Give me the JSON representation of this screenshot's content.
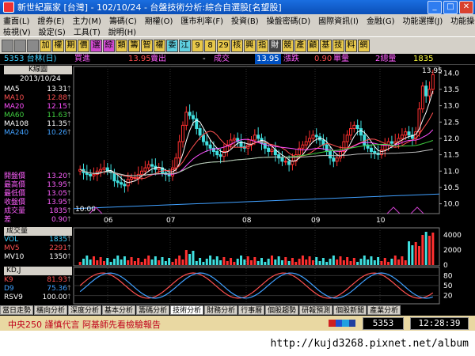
{
  "window": {
    "title": "新世紀贏家 [台灣] - 102/10/24 - 台盤技術分析:綜合自選股[名望股]"
  },
  "menu": {
    "row1": [
      "畫面(L)",
      "證券(E)",
      "主力(M)",
      "籌碼(C)",
      "期權(O)",
      "匯市利率(F)",
      "投資(B)",
      "操盤密碼(D)",
      "國際資訊(I)",
      "金融(G)",
      "功能選擇(J)",
      "功能操作(P)"
    ],
    "row2": [
      "檢視(V)",
      "設定(S)",
      "工具(T)",
      "說明(H)"
    ]
  },
  "toolbar": {
    "buttons": [
      {
        "label": "加",
        "bg": "#e8c84a"
      },
      {
        "label": "權",
        "bg": "#e8c84a"
      },
      {
        "label": "期",
        "bg": "#e8c84a"
      },
      {
        "label": "價",
        "bg": "#e8c84a"
      },
      {
        "label": "選",
        "bg": "#d04ad0"
      },
      {
        "label": "綜",
        "bg": "#d04ad0"
      },
      {
        "label": "類",
        "bg": "#e8c84a"
      },
      {
        "label": "籌",
        "bg": "#e8c84a"
      },
      {
        "label": "智",
        "bg": "#e8c84a"
      },
      {
        "label": "權",
        "bg": "#e8c84a"
      },
      {
        "label": "委",
        "bg": "#5fd0e0"
      },
      {
        "label": "江",
        "bg": "#5fd0e0"
      },
      {
        "label": "9",
        "bg": "#e8c84a"
      },
      {
        "label": "8",
        "bg": "#e8c84a"
      },
      {
        "label": "29",
        "bg": "#e8c84a"
      },
      {
        "label": "核",
        "bg": "#e8c84a"
      },
      {
        "label": "興",
        "bg": "#e8c84a"
      },
      {
        "label": "指",
        "bg": "#e8c84a"
      },
      {
        "label": "財",
        "bg": "#444444"
      },
      {
        "label": "競",
        "bg": "#e8c84a"
      },
      {
        "label": "產",
        "bg": "#e8c84a"
      },
      {
        "label": "顧",
        "bg": "#e8c84a"
      },
      {
        "label": "基",
        "bg": "#e8c84a"
      },
      {
        "label": "技",
        "bg": "#e8c84a"
      },
      {
        "label": "料",
        "bg": "#e8c84a"
      },
      {
        "label": "網",
        "bg": "#e8c84a"
      }
    ]
  },
  "quote": {
    "symbol": "5353 台林(日)",
    "bid_label": "買進",
    "bid": "13.95",
    "ask_label": "賣出",
    "ask": "-",
    "last_label": "成交",
    "last": "13.95",
    "change_label": "漲跌",
    "change": "0.90",
    "vol_label": "單量",
    "vol": "2總量",
    "total": "1835"
  },
  "left_panel": {
    "kline_button": "K線圖",
    "date": "2013/10/24",
    "ma": [
      {
        "name": "MA5",
        "value": "13.31",
        "color": "#ffffff"
      },
      {
        "name": "MA10",
        "value": "12.88",
        "color": "#ff5050"
      },
      {
        "name": "MA20",
        "value": "12.15",
        "color": "#ff50ff"
      },
      {
        "name": "MA60",
        "value": "11.63",
        "color": "#40d040"
      },
      {
        "name": "MA108",
        "value": "11.35",
        "color": "#ffffff"
      },
      {
        "name": "MA240",
        "value": "10.26",
        "color": "#40a0ff"
      }
    ],
    "ohlc": [
      {
        "name": "開盤價",
        "value": "13.20"
      },
      {
        "name": "最高價",
        "value": "13.95"
      },
      {
        "name": "最低價",
        "value": "13.05"
      },
      {
        "name": "收盤價",
        "value": "13.95"
      },
      {
        "name": "成交量",
        "value": "1835"
      },
      {
        "name": "差",
        "value": "0.90"
      }
    ],
    "volume_header": "成交量",
    "volume": [
      {
        "name": "VOL",
        "value": "1835",
        "color": "#40d0ff"
      },
      {
        "name": "MV5",
        "value": "2291",
        "color": "#ff5050"
      },
      {
        "name": "MV10",
        "value": "1350",
        "color": "#ffffff"
      }
    ],
    "kd_header": "KD,J",
    "kd": [
      {
        "name": "K9",
        "value": "81.93",
        "color": "#ff5050"
      },
      {
        "name": "D9",
        "value": "75.36",
        "color": "#40a0ff"
      },
      {
        "name": "RSV9",
        "value": "100.00",
        "color": "#ffffff"
      }
    ]
  },
  "chart_data": {
    "type": "candlestick",
    "x_tick_labels": [
      "06",
      "07",
      "08",
      "09",
      "10"
    ],
    "y_tick_labels": [
      "14.0",
      "13.5",
      "13.0",
      "12.5",
      "12.0",
      "11.5",
      "11.0",
      "10.5",
      "10.0"
    ],
    "ylim": [
      9.7,
      14.2
    ],
    "max_label": "13.95",
    "min_label": "10:00",
    "closes": [
      11.05,
      10.95,
      10.9,
      10.85,
      10.9,
      11.0,
      11.05,
      11.1,
      11.0,
      10.95,
      10.7,
      10.65,
      10.6,
      10.55,
      10.75,
      10.8,
      10.8,
      10.9,
      11.0,
      11.1,
      11.2,
      11.15,
      11.05,
      11.1,
      10.95,
      10.9,
      10.85,
      11.1,
      11.4,
      11.9,
      12.4,
      12.8,
      12.7,
      12.6,
      12.3,
      12.1,
      11.9,
      11.8,
      11.7,
      11.6,
      11.5,
      11.45,
      11.6,
      11.8,
      11.95,
      12.0,
      11.9,
      11.75,
      11.7,
      11.8,
      11.95,
      12.1,
      12.0,
      11.85,
      11.7,
      11.6,
      11.65,
      11.5,
      11.4,
      11.3,
      11.3,
      11.2,
      11.3,
      11.5,
      11.7,
      11.8,
      11.9,
      12.0,
      12.1,
      12.05,
      11.95,
      11.8,
      11.6,
      11.4,
      11.3,
      11.4,
      11.6,
      11.9,
      12.1,
      12.3,
      12.4,
      12.3,
      12.1,
      11.8,
      11.7,
      11.6,
      11.55,
      11.5,
      11.65,
      11.8,
      11.9,
      11.85,
      11.9,
      12.0,
      12.1,
      12.2,
      12.1,
      12.0,
      12.2,
      12.9,
      13.6,
      13.3,
      13.5,
      13.95
    ],
    "volume_axis_labels": [
      "4000",
      "2000",
      "0"
    ],
    "kd_axis_labels": [
      "80",
      "50",
      "20"
    ],
    "indicator_values": {
      "K9": 81.93,
      "D9": 75.36,
      "RSV9": 100.0,
      "VOL": 1835,
      "MV5": 2291,
      "MV10": 1350
    }
  },
  "tabs": {
    "items": [
      "當日走勢",
      "橫向分析",
      "深度分析",
      "基本分析",
      "籌碼分析",
      "技術分析",
      "財務分析",
      "行事曆",
      "個股趨勢",
      "研報預測",
      "個股新聞",
      "產業分析"
    ],
    "active": "技術分析"
  },
  "status": {
    "ticker": "中央250  謹慎代言   阿基師先看檢驗報告",
    "code": "5353",
    "clock": "12:28:39"
  },
  "watermark": "http://kujd3268.pixnet.net/album"
}
